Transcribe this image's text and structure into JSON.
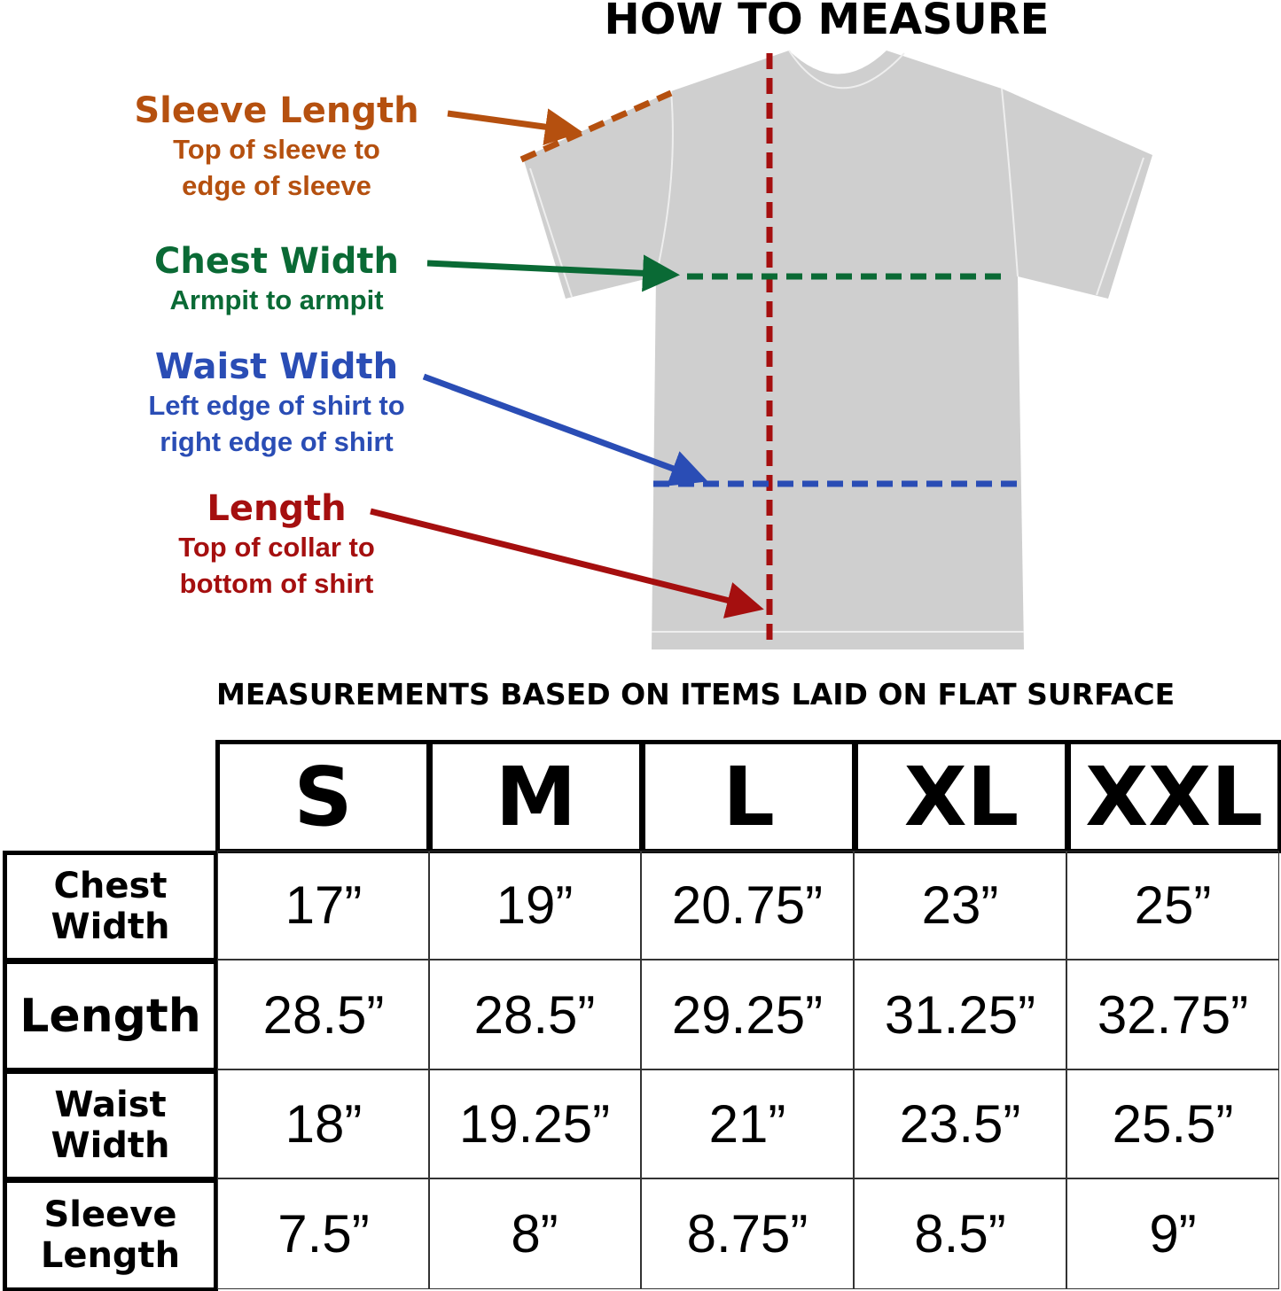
{
  "header": {
    "title": "HOW TO MEASURE"
  },
  "guides": [
    {
      "title": "Sleeve Length",
      "description": [
        "Top of sleeve to",
        "edge of sleeve"
      ]
    },
    {
      "title": "Chest Width",
      "description": [
        "Armpit to armpit"
      ]
    },
    {
      "title": "Waist Width",
      "description": [
        "Left edge of shirt to",
        "right edge of shirt"
      ]
    },
    {
      "title": "Length",
      "description": [
        "Top of collar to",
        "bottom of shirt"
      ]
    }
  ],
  "table": {
    "note": "MEASUREMENTS BASED ON ITEMS LAID ON FLAT SURFACE",
    "columns": [
      "S",
      "M",
      "L",
      "XL",
      "XXL"
    ],
    "rows": [
      {
        "label": [
          "Chest",
          "Width"
        ],
        "values": [
          "17”",
          "19”",
          "20.75”",
          "23”",
          "25”"
        ]
      },
      {
        "label": [
          "Length"
        ],
        "values": [
          "28.5”",
          "28.5”",
          "29.25”",
          "31.25”",
          "32.75”"
        ]
      },
      {
        "label": [
          "Waist",
          "Width"
        ],
        "values": [
          "18”",
          "19.25”",
          "21”",
          "23.5”",
          "25.5”"
        ]
      },
      {
        "label": [
          "Sleeve",
          "Length"
        ],
        "values": [
          "7.5”",
          "8”",
          "8.75”",
          "8.5”",
          "9”"
        ]
      }
    ]
  }
}
